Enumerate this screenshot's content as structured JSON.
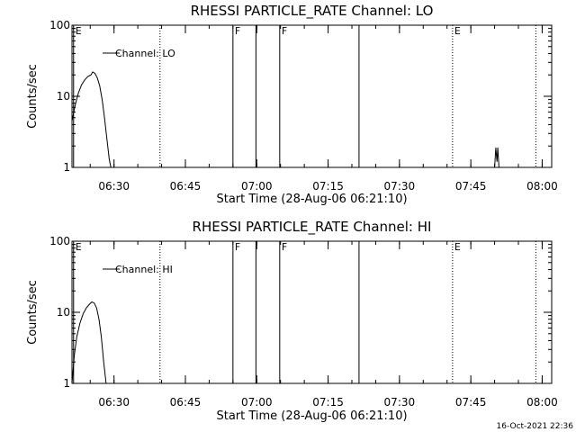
{
  "footer": {
    "date": "16-Oct-2021 22:36"
  },
  "chart_data": [
    {
      "type": "line",
      "title": "RHESSI PARTICLE_RATE Channel: LO",
      "xlabel": "Start Time (28-Aug-06 06:21:10)",
      "ylabel": "Counts/sec",
      "y_scale": "log",
      "ylim": [
        1,
        100
      ],
      "y_ticks": [
        {
          "value": 1,
          "label": "1"
        },
        {
          "value": 10,
          "label": "10"
        },
        {
          "value": 100,
          "label": "100"
        }
      ],
      "xlim": [
        "06:21:10",
        "08:02:00"
      ],
      "x_ticks": [
        {
          "value": "06:30",
          "label": "06:30"
        },
        {
          "value": "06:45",
          "label": "06:45"
        },
        {
          "value": "07:00",
          "label": "07:00"
        },
        {
          "value": "07:15",
          "label": "07:15"
        },
        {
          "value": "07:30",
          "label": "07:30"
        },
        {
          "value": "07:45",
          "label": "07:45"
        },
        {
          "value": "08:00",
          "label": "08:00"
        }
      ],
      "legend": {
        "label": "Channel: LO",
        "placement": "top-left"
      },
      "markers": [
        {
          "time": "06:21:30",
          "label": "E",
          "style": "solid"
        },
        {
          "time": "06:39:40",
          "label": "",
          "style": "dotted"
        },
        {
          "time": "06:55:00",
          "label": "F",
          "style": "solid"
        },
        {
          "time": "06:59:50",
          "label": "",
          "style": "solid"
        },
        {
          "time": "07:04:50",
          "label": "F",
          "style": "solid"
        },
        {
          "time": "07:21:30",
          "label": "",
          "style": "solid"
        },
        {
          "time": "07:41:10",
          "label": "E",
          "style": "dotted"
        },
        {
          "time": "07:58:40",
          "label": "",
          "style": "dotted"
        }
      ],
      "series": [
        {
          "name": "Channel: LO",
          "segments": [
            [
              [
                "06:21:10",
                4.5
              ],
              [
                "06:21:50",
                7.5
              ],
              [
                "06:22:30",
                11
              ],
              [
                "06:23:10",
                14.5
              ],
              [
                "06:23:50",
                17
              ],
              [
                "06:24:30",
                19
              ],
              [
                "06:25:10",
                20
              ],
              [
                "06:25:30",
                22
              ],
              [
                "06:26:00",
                21
              ],
              [
                "06:26:30",
                18
              ],
              [
                "06:27:00",
                14
              ],
              [
                "06:27:30",
                9
              ],
              [
                "06:28:00",
                5
              ],
              [
                "06:28:30",
                2.5
              ],
              [
                "06:29:00",
                1.3
              ],
              [
                "06:29:20",
                1
              ]
            ],
            [
              [
                "07:50:00",
                1
              ],
              [
                "07:50:15",
                1.9
              ],
              [
                "07:50:30",
                1.2
              ],
              [
                "07:50:40",
                1.9
              ],
              [
                "07:50:55",
                1
              ]
            ]
          ]
        }
      ]
    },
    {
      "type": "line",
      "title": "RHESSI PARTICLE_RATE Channel: HI",
      "xlabel": "Start Time (28-Aug-06 06:21:10)",
      "ylabel": "Counts/sec",
      "y_scale": "log",
      "ylim": [
        1,
        100
      ],
      "y_ticks": [
        {
          "value": 1,
          "label": "1"
        },
        {
          "value": 10,
          "label": "10"
        },
        {
          "value": 100,
          "label": "100"
        }
      ],
      "xlim": [
        "06:21:10",
        "08:02:00"
      ],
      "x_ticks": [
        {
          "value": "06:30",
          "label": "06:30"
        },
        {
          "value": "06:45",
          "label": "06:45"
        },
        {
          "value": "07:00",
          "label": "07:00"
        },
        {
          "value": "07:15",
          "label": "07:15"
        },
        {
          "value": "07:30",
          "label": "07:30"
        },
        {
          "value": "07:45",
          "label": "07:45"
        },
        {
          "value": "08:00",
          "label": "08:00"
        }
      ],
      "legend": {
        "label": "Channel: HI",
        "placement": "top-left"
      },
      "markers": [
        {
          "time": "06:21:30",
          "label": "E",
          "style": "solid"
        },
        {
          "time": "06:39:40",
          "label": "",
          "style": "dotted"
        },
        {
          "time": "06:55:00",
          "label": "F",
          "style": "solid"
        },
        {
          "time": "06:59:50",
          "label": "",
          "style": "solid"
        },
        {
          "time": "07:04:50",
          "label": "F",
          "style": "solid"
        },
        {
          "time": "07:21:30",
          "label": "",
          "style": "solid"
        },
        {
          "time": "07:41:10",
          "label": "E",
          "style": "dotted"
        },
        {
          "time": "07:58:40",
          "label": "",
          "style": "dotted"
        }
      ],
      "series": [
        {
          "name": "Channel: HI",
          "segments": [
            [
              [
                "06:21:10",
                1
              ],
              [
                "06:21:40",
                2.5
              ],
              [
                "06:22:10",
                4.5
              ],
              [
                "06:22:50",
                7
              ],
              [
                "06:23:30",
                9.5
              ],
              [
                "06:24:10",
                11.5
              ],
              [
                "06:24:50",
                13
              ],
              [
                "06:25:20",
                14
              ],
              [
                "06:25:50",
                13.5
              ],
              [
                "06:26:20",
                11.5
              ],
              [
                "06:26:50",
                8
              ],
              [
                "06:27:20",
                4.5
              ],
              [
                "06:27:50",
                2
              ],
              [
                "06:28:20",
                1
              ]
            ]
          ]
        }
      ]
    }
  ]
}
